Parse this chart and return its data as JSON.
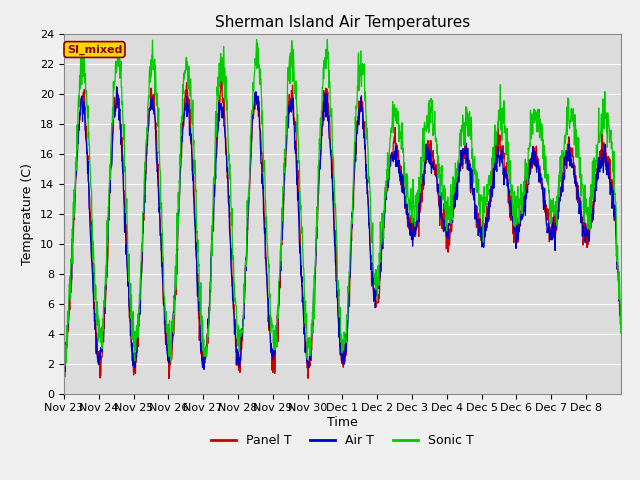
{
  "title": "Sherman Island Air Temperatures",
  "xlabel": "Time",
  "ylabel": "Temperature (C)",
  "ylim": [
    0,
    24
  ],
  "yticks": [
    0,
    2,
    4,
    6,
    8,
    10,
    12,
    14,
    16,
    18,
    20,
    22,
    24
  ],
  "x_labels": [
    "Nov 23",
    "Nov 24",
    "Nov 25",
    "Nov 26",
    "Nov 27",
    "Nov 28",
    "Nov 29",
    "Nov 30",
    "Dec 1",
    "Dec 2",
    "Dec 3",
    "Dec 4",
    "Dec 5",
    "Dec 6",
    "Dec 7",
    "Dec 8"
  ],
  "annotation_text": "SI_mixed",
  "annotation_color": "#8B0000",
  "annotation_bg": "#FFD700",
  "panel_t_color": "#CC0000",
  "air_t_color": "#0000CC",
  "sonic_t_color": "#00CC00",
  "bg_color": "#DCDCDC",
  "grid_color": "#FFFFFF",
  "title_fontsize": 11,
  "axis_fontsize": 9,
  "tick_fontsize": 8
}
